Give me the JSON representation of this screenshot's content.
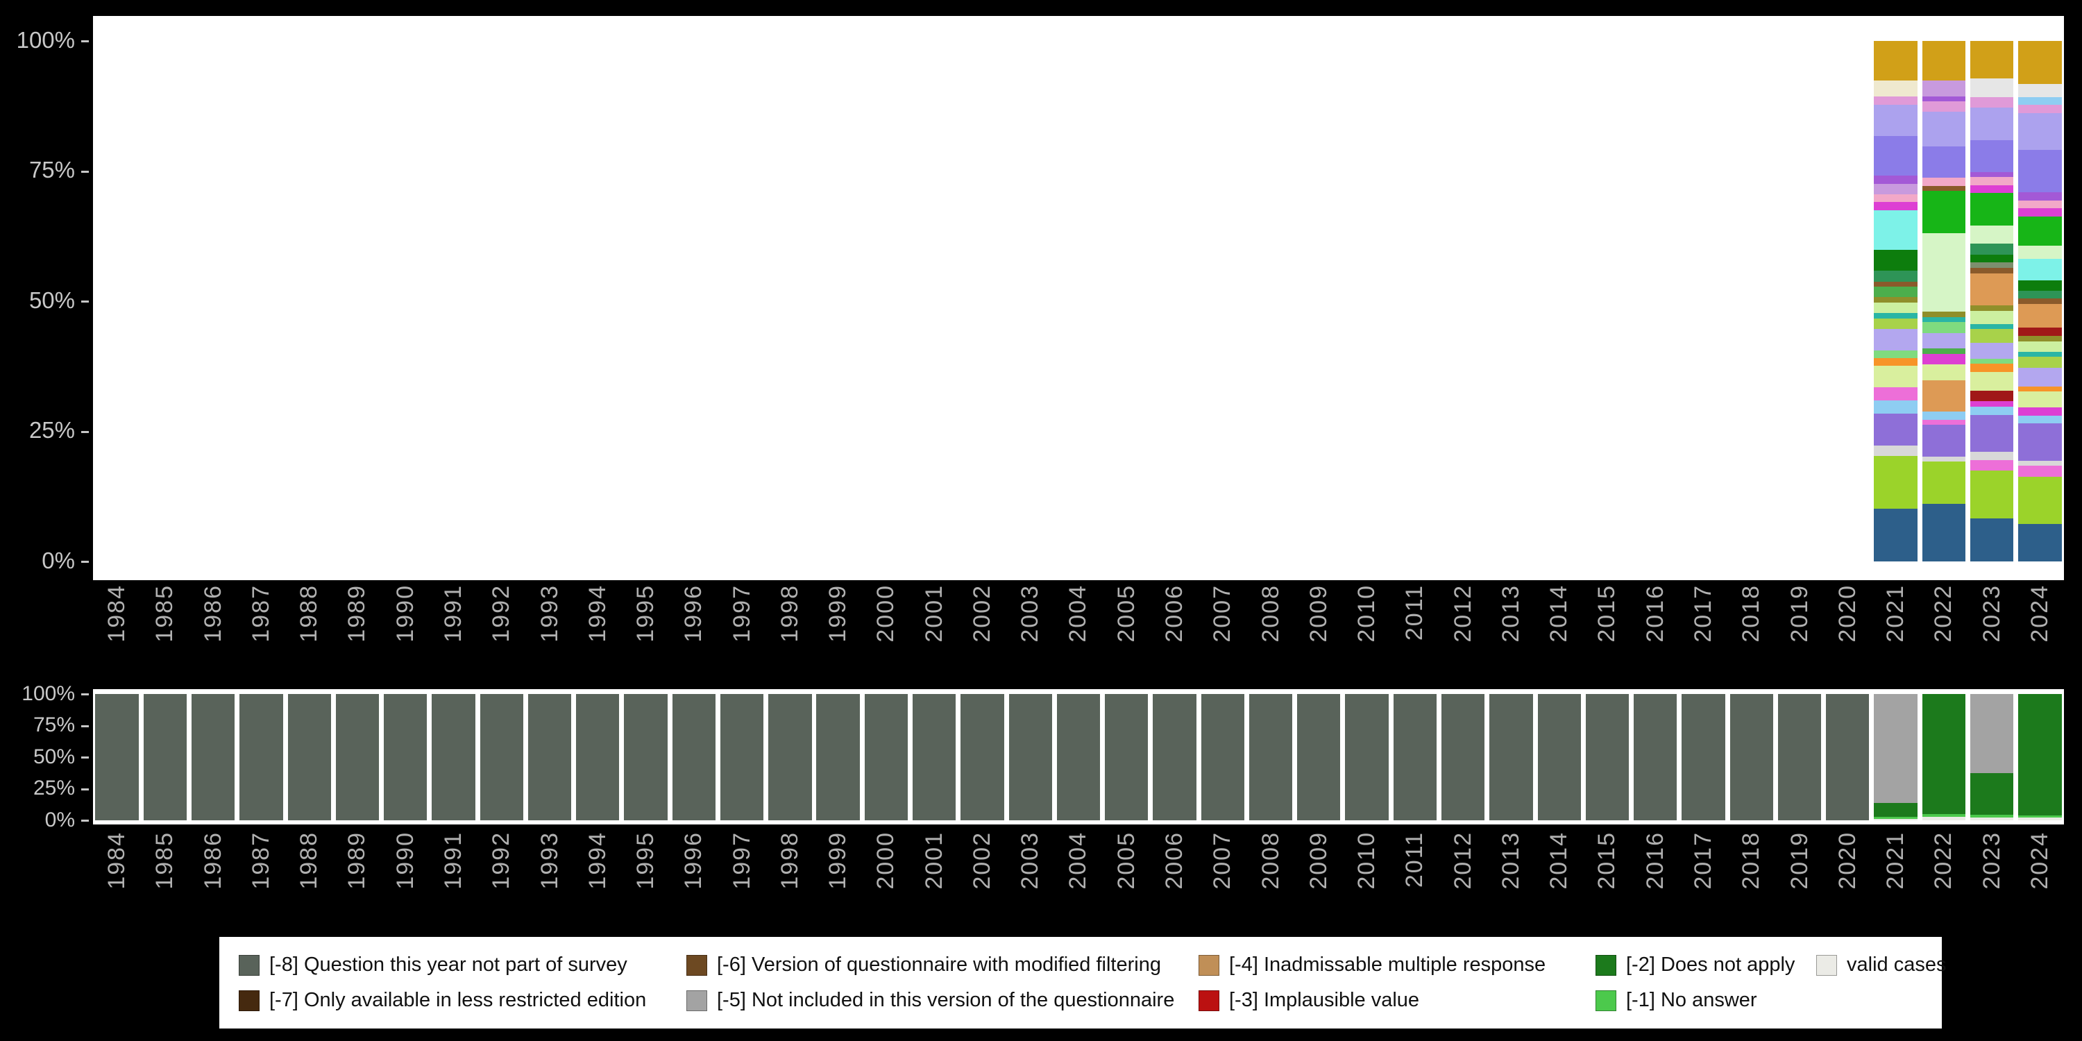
{
  "page": {
    "background": "#000000"
  },
  "legend": {
    "bg": "#ffffff",
    "items": [
      {
        "code": "-8",
        "label": "[-8] Question this year not part of survey",
        "color": "#59635a"
      },
      {
        "code": "-7",
        "label": "[-7] Only available in less restricted edition",
        "color": "#45290f"
      },
      {
        "code": "-6",
        "label": "[-6] Version of questionnaire with modified filtering",
        "color": "#6d4922"
      },
      {
        "code": "-5",
        "label": "[-5] Not included in this version of the questionnaire",
        "color": "#a3a3a3"
      },
      {
        "code": "-4",
        "label": "[-4] Inadmissable multiple response",
        "color": "#c08f57"
      },
      {
        "code": "-3",
        "label": "[-3] Implausible value",
        "color": "#bb1111"
      },
      {
        "code": "-2",
        "label": "[-2] Does not apply",
        "color": "#1c7a1c"
      },
      {
        "code": "-1",
        "label": "[-1] No answer",
        "color": "#4cc94c"
      },
      {
        "code": "valid",
        "label": "valid cases",
        "color": "#ebebe6"
      }
    ],
    "order_row1": [
      "-8",
      "-6",
      "-4",
      "-2",
      "valid"
    ],
    "order_row2": [
      "-7",
      "-5",
      "-3",
      "-1"
    ]
  },
  "chart_data": [
    {
      "name": "value-distribution-by-year",
      "type": "bar",
      "stacking": "percent",
      "grid": false,
      "y_ticks": [
        "0%",
        "25%",
        "50%",
        "75%",
        "100%"
      ],
      "categories": [
        "1984",
        "1985",
        "1986",
        "1987",
        "1988",
        "1989",
        "1990",
        "1991",
        "1992",
        "1993",
        "1994",
        "1995",
        "1996",
        "1997",
        "1998",
        "1999",
        "2000",
        "2001",
        "2002",
        "2003",
        "2004",
        "2005",
        "2006",
        "2007",
        "2008",
        "2009",
        "2010",
        "2011",
        "2012",
        "2013",
        "2014",
        "2015",
        "2016",
        "2017",
        "2018",
        "2019",
        "2020",
        "2021",
        "2022",
        "2023",
        "2024"
      ],
      "bars": {
        "2021": [
          [
            "#2d5f8a",
            10
          ],
          [
            "#9bd32a",
            10
          ],
          [
            "#d8d8d8",
            2
          ],
          [
            "#8e6fd8",
            6
          ],
          [
            "#8ecdf2",
            2.5
          ],
          [
            "#ed6fd8",
            2.5
          ],
          [
            "#d9ef9e",
            4
          ],
          [
            "#f79428",
            1.5
          ],
          [
            "#7fdb7f",
            1.5
          ],
          [
            "#b3a7ef",
            4
          ],
          [
            "#a8d24a",
            2
          ],
          [
            "#2ab5a5",
            1
          ],
          [
            "#ccf0a0",
            2
          ],
          [
            "#8f8f2a",
            1
          ],
          [
            "#4cae4c",
            2
          ],
          [
            "#8a5a2b",
            1
          ],
          [
            "#2e9457",
            2
          ],
          [
            "#0d7d0d",
            4
          ],
          [
            "#7df2e8",
            7.5
          ],
          [
            "#dd3fd3",
            1.5
          ],
          [
            "#f2a8c8",
            1.5
          ],
          [
            "#c89ade",
            2
          ],
          [
            "#a359d6",
            1.5
          ],
          [
            "#8b7ce8",
            7.5
          ],
          [
            "#aca2ee",
            6
          ],
          [
            "#e09ad8",
            1.5
          ],
          [
            "#efe9cf",
            3
          ],
          [
            "#d1a018",
            7.5
          ]
        ],
        "2022": [
          [
            "#2d5f8a",
            11
          ],
          [
            "#9bd32a",
            8
          ],
          [
            "#d8d8d8",
            1
          ],
          [
            "#8e6fd8",
            6
          ],
          [
            "#ed6fd8",
            1
          ],
          [
            "#8ecdf2",
            1.5
          ],
          [
            "#dd9a55",
            6
          ],
          [
            "#d9ef9e",
            3
          ],
          [
            "#dd3fd3",
            2
          ],
          [
            "#4cae4c",
            1
          ],
          [
            "#b3a7ef",
            3
          ],
          [
            "#7fdb7f",
            2
          ],
          [
            "#2ab5a5",
            1
          ],
          [
            "#8f8f2a",
            1
          ],
          [
            "#d6f5c6",
            15
          ],
          [
            "#17b517",
            8
          ],
          [
            "#8a5a2b",
            1
          ],
          [
            "#f2a8c8",
            1.5
          ],
          [
            "#8b7ce8",
            6
          ],
          [
            "#aca2ee",
            6.5
          ],
          [
            "#e09ad8",
            2
          ],
          [
            "#a359d6",
            1
          ],
          [
            "#c89ade",
            3
          ],
          [
            "#d1a018",
            7.5
          ]
        ],
        "2023": [
          [
            "#2d5f8a",
            8
          ],
          [
            "#9bd32a",
            9
          ],
          [
            "#ed6fd8",
            2
          ],
          [
            "#d8d8d8",
            1.5
          ],
          [
            "#8e6fd8",
            7
          ],
          [
            "#8ecdf2",
            1.5
          ],
          [
            "#dd3fd3",
            1
          ],
          [
            "#a01818",
            2
          ],
          [
            "#d9ef9e",
            3.5
          ],
          [
            "#f79428",
            1.5
          ],
          [
            "#7fdb7f",
            1
          ],
          [
            "#b3a7ef",
            3
          ],
          [
            "#a8d24a",
            2.5
          ],
          [
            "#2ab5a5",
            1
          ],
          [
            "#ccf0a0",
            2.5
          ],
          [
            "#8f8f2a",
            1
          ],
          [
            "#dd9a55",
            6
          ],
          [
            "#8a5a2b",
            1
          ],
          [
            "#7c8f6e",
            1
          ],
          [
            "#0d7d0d",
            1.5
          ],
          [
            "#2e9457",
            2
          ],
          [
            "#d6f5c6",
            3.5
          ],
          [
            "#17b517",
            6
          ],
          [
            "#dd3fd3",
            1.5
          ],
          [
            "#f2a8c8",
            1.5
          ],
          [
            "#a359d6",
            1
          ],
          [
            "#8b7ce8",
            6
          ],
          [
            "#aca2ee",
            6
          ],
          [
            "#e09ad8",
            2
          ],
          [
            "#e6e6e6",
            3.5
          ],
          [
            "#d1a018",
            7
          ]
        ],
        "2024": [
          [
            "#2d5f8a",
            7
          ],
          [
            "#9bd32a",
            9
          ],
          [
            "#ed6fd8",
            2
          ],
          [
            "#d8d8d8",
            1
          ],
          [
            "#8e6fd8",
            7
          ],
          [
            "#8ecdf2",
            1.5
          ],
          [
            "#dd3fd3",
            1.5
          ],
          [
            "#d9ef9e",
            3
          ],
          [
            "#f79428",
            1
          ],
          [
            "#b3a7ef",
            3.5
          ],
          [
            "#a8d24a",
            2
          ],
          [
            "#2ab5a5",
            1
          ],
          [
            "#ccf0a0",
            2
          ],
          [
            "#8f8f2a",
            1
          ],
          [
            "#a01818",
            1.5
          ],
          [
            "#dd9a55",
            4.5
          ],
          [
            "#8a5a2b",
            1
          ],
          [
            "#2e9457",
            1.5
          ],
          [
            "#0d7d0d",
            2
          ],
          [
            "#7df2e8",
            4
          ],
          [
            "#d6f5c6",
            2.5
          ],
          [
            "#17b517",
            5.5
          ],
          [
            "#dd3fd3",
            1.5
          ],
          [
            "#f2a8c8",
            1.5
          ],
          [
            "#a359d6",
            1.5
          ],
          [
            "#8b7ce8",
            8
          ],
          [
            "#aca2ee",
            7
          ],
          [
            "#e09ad8",
            1.5
          ],
          [
            "#8ecdf2",
            1.5
          ],
          [
            "#e6e6e6",
            2.5
          ],
          [
            "#d1a018",
            8
          ]
        ]
      }
    },
    {
      "name": "missing-codes-by-year",
      "type": "bar",
      "stacking": "percent",
      "grid": false,
      "y_ticks": [
        "0%",
        "25%",
        "50%",
        "75%",
        "100%"
      ],
      "categories": [
        "1984",
        "1985",
        "1986",
        "1987",
        "1988",
        "1989",
        "1990",
        "1991",
        "1992",
        "1993",
        "1994",
        "1995",
        "1996",
        "1997",
        "1998",
        "1999",
        "2000",
        "2001",
        "2002",
        "2003",
        "2004",
        "2005",
        "2006",
        "2007",
        "2008",
        "2009",
        "2010",
        "2011",
        "2012",
        "2013",
        "2014",
        "2015",
        "2016",
        "2017",
        "2018",
        "2019",
        "2020",
        "2021",
        "2022",
        "2023",
        "2024"
      ],
      "bars": {
        "1984": [
          [
            "-8",
            100
          ]
        ],
        "1985": [
          [
            "-8",
            100
          ]
        ],
        "1986": [
          [
            "-8",
            100
          ]
        ],
        "1987": [
          [
            "-8",
            100
          ]
        ],
        "1988": [
          [
            "-8",
            100
          ]
        ],
        "1989": [
          [
            "-8",
            100
          ]
        ],
        "1990": [
          [
            "-8",
            100
          ]
        ],
        "1991": [
          [
            "-8",
            100
          ]
        ],
        "1992": [
          [
            "-8",
            100
          ]
        ],
        "1993": [
          [
            "-8",
            100
          ]
        ],
        "1994": [
          [
            "-8",
            100
          ]
        ],
        "1995": [
          [
            "-8",
            100
          ]
        ],
        "1996": [
          [
            "-8",
            100
          ]
        ],
        "1997": [
          [
            "-8",
            100
          ]
        ],
        "1998": [
          [
            "-8",
            100
          ]
        ],
        "1999": [
          [
            "-8",
            100
          ]
        ],
        "2000": [
          [
            "-8",
            100
          ]
        ],
        "2001": [
          [
            "-8",
            100
          ]
        ],
        "2002": [
          [
            "-8",
            100
          ]
        ],
        "2003": [
          [
            "-8",
            100
          ]
        ],
        "2004": [
          [
            "-8",
            100
          ]
        ],
        "2005": [
          [
            "-8",
            100
          ]
        ],
        "2006": [
          [
            "-8",
            100
          ]
        ],
        "2007": [
          [
            "-8",
            100
          ]
        ],
        "2008": [
          [
            "-8",
            100
          ]
        ],
        "2009": [
          [
            "-8",
            100
          ]
        ],
        "2010": [
          [
            "-8",
            100
          ]
        ],
        "2011": [
          [
            "-8",
            100
          ]
        ],
        "2012": [
          [
            "-8",
            100
          ]
        ],
        "2013": [
          [
            "-8",
            100
          ]
        ],
        "2014": [
          [
            "-8",
            100
          ]
        ],
        "2015": [
          [
            "-8",
            100
          ]
        ],
        "2016": [
          [
            "-8",
            100
          ]
        ],
        "2017": [
          [
            "-8",
            100
          ]
        ],
        "2018": [
          [
            "-8",
            100
          ]
        ],
        "2019": [
          [
            "-8",
            100
          ]
        ],
        "2020": [
          [
            "-8",
            100
          ]
        ],
        "2021": [
          [
            "valid",
            1
          ],
          [
            "-1",
            1.5
          ],
          [
            "-2",
            11.5
          ],
          [
            "-5",
            86
          ]
        ],
        "2022": [
          [
            "valid",
            3
          ],
          [
            "-1",
            2
          ],
          [
            "-2",
            95
          ]
        ],
        "2023": [
          [
            "valid",
            2
          ],
          [
            "-1",
            2.5
          ],
          [
            "-2",
            33
          ],
          [
            "-5",
            62.5
          ]
        ],
        "2024": [
          [
            "valid",
            2
          ],
          [
            "-1",
            2
          ],
          [
            "-2",
            96
          ]
        ]
      }
    }
  ]
}
